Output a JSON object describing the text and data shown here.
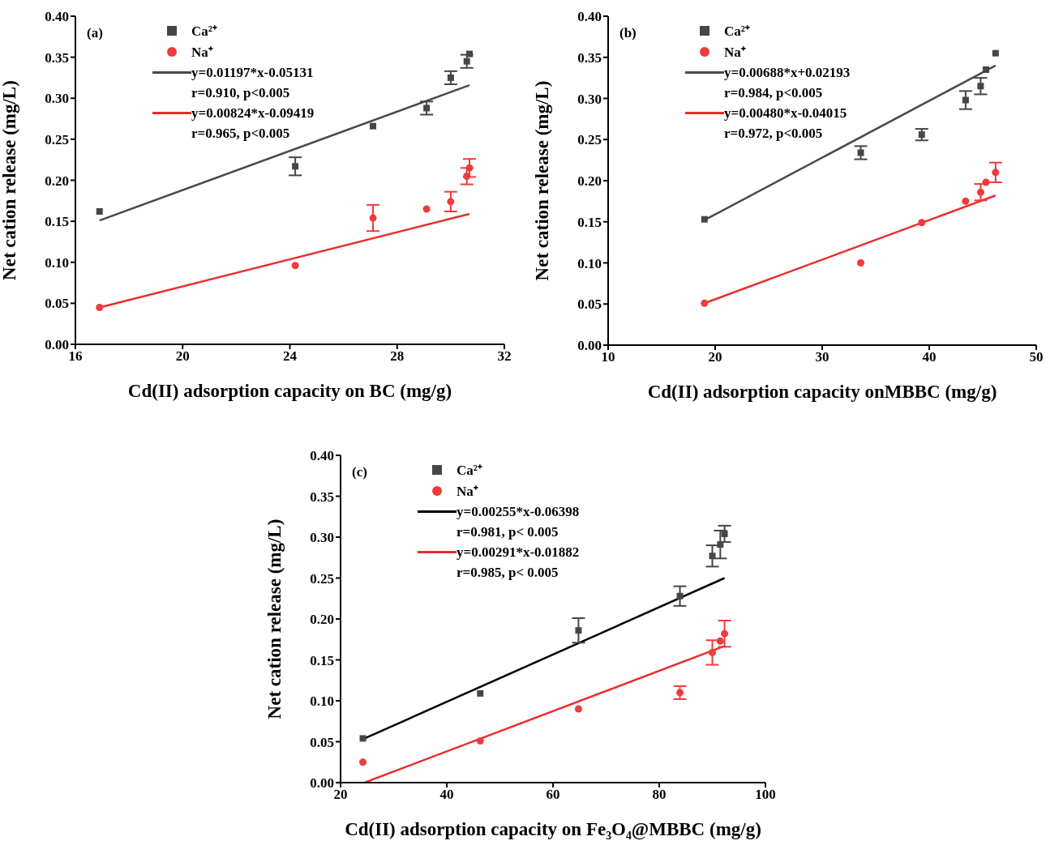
{
  "chart_data": [
    {
      "type": "scatter",
      "title": "(a)",
      "xlabel": "Cd(II) adsorption capacity on BC (mg/g)",
      "ylabel": "Net cation release (mg/L)",
      "xlim": [
        16,
        32
      ],
      "xticks": [
        16,
        20,
        24,
        28,
        32
      ],
      "ylim": [
        0,
        0.4
      ],
      "yticks": [
        {
          "value": 0,
          "label": "0.00"
        },
        {
          "value": 0.05,
          "label": "0.05"
        },
        {
          "value": 0.1,
          "label": "0.10"
        },
        {
          "value": 0.15,
          "label": "0.15"
        },
        {
          "value": 0.2,
          "label": "0.20"
        },
        {
          "value": 0.25,
          "label": "0.25"
        },
        {
          "value": 0.3,
          "label": "0.30"
        },
        {
          "value": 0.35,
          "label": "0.35"
        },
        {
          "value": 0.4,
          "label": "0.40"
        }
      ],
      "legend": "top left",
      "series": [
        {
          "name": "Ca²⁺",
          "color": "#464646",
          "marker": "square",
          "x": [
            16.9,
            24.2,
            27.1,
            29.1,
            30.0,
            30.6,
            30.7
          ],
          "values": [
            0.162,
            0.217,
            0.266,
            0.288,
            0.325,
            0.345,
            0.354
          ],
          "errors": [
            null,
            0.011,
            null,
            0.008,
            0.008,
            0.008,
            null
          ]
        },
        {
          "name": "Na⁺",
          "color": "#ee3b3b",
          "marker": "circle",
          "x": [
            16.9,
            24.2,
            27.1,
            29.1,
            30.0,
            30.6,
            30.7
          ],
          "values": [
            0.045,
            0.096,
            0.154,
            0.165,
            0.174,
            0.205,
            0.215
          ],
          "errors": [
            null,
            null,
            0.016,
            null,
            0.012,
            0.01,
            0.011
          ]
        },
        {
          "type": "line",
          "name": "y=0.01197*x-0.05131",
          "color": "#4a4a4a",
          "x": [
            16.9,
            30.7
          ],
          "values": [
            0.151,
            0.316
          ]
        },
        {
          "type": "line",
          "name": "y=0.00824*x-0.09419",
          "color": "#ee2c2c",
          "x": [
            16.9,
            30.7
          ],
          "values": [
            0.045,
            0.159
          ]
        }
      ],
      "annotations": [
        "r=0.910, p<0.005",
        "r=0.965, p<0.005"
      ]
    },
    {
      "type": "scatter",
      "title": "(b)",
      "xlabel": "Cd(II) adsorption capacity onMBBC (mg/g)",
      "ylabel": "Net cation release (mg/L)",
      "xlim": [
        10,
        50
      ],
      "xticks": [
        10,
        20,
        30,
        40,
        50
      ],
      "ylim": [
        0,
        0.4
      ],
      "yticks": [
        {
          "value": 0,
          "label": "0.00"
        },
        {
          "value": 0.05,
          "label": "0.05"
        },
        {
          "value": 0.1,
          "label": "0.10"
        },
        {
          "value": 0.15,
          "label": "0.15"
        },
        {
          "value": 0.2,
          "label": "0.20"
        },
        {
          "value": 0.25,
          "label": "0.25"
        },
        {
          "value": 0.3,
          "label": "0.30"
        },
        {
          "value": 0.35,
          "label": "0.35"
        },
        {
          "value": 0.4,
          "label": "0.40"
        }
      ],
      "legend": "top left",
      "series": [
        {
          "name": "Ca²⁺",
          "color": "#464646",
          "marker": "square",
          "x": [
            19.0,
            33.6,
            39.3,
            43.4,
            44.8,
            45.3,
            46.2
          ],
          "values": [
            0.153,
            0.234,
            0.256,
            0.298,
            0.315,
            0.335,
            0.355
          ],
          "errors": [
            null,
            0.008,
            0.007,
            0.011,
            0.01,
            null,
            null
          ]
        },
        {
          "name": "Na⁺",
          "color": "#ee3b3b",
          "marker": "circle",
          "x": [
            19.0,
            33.6,
            39.3,
            43.4,
            44.8,
            45.3,
            46.2
          ],
          "values": [
            0.051,
            0.1,
            0.149,
            0.175,
            0.186,
            0.198,
            0.21
          ],
          "errors": [
            null,
            null,
            null,
            null,
            0.01,
            null,
            0.012
          ]
        },
        {
          "type": "line",
          "name": "y=0.00688*x+0.02193",
          "color": "#4a4a4a",
          "x": [
            19.0,
            46.2
          ],
          "values": [
            0.152,
            0.34
          ]
        },
        {
          "type": "line",
          "name": "y=0.00480*x-0.04015",
          "color": "#ee2c2c",
          "x": [
            19.0,
            46.2
          ],
          "values": [
            0.051,
            0.182
          ]
        }
      ],
      "annotations": [
        "r=0.984, p<0.005",
        "r=0.972, p<0.005"
      ]
    },
    {
      "type": "scatter",
      "title": "(c)",
      "xlabel": "Cd(II) adsorption capacity on Fe₃O₄@MBBC (mg/g)",
      "ylabel": "Net cation release (mg/L)",
      "xlim": [
        20,
        100
      ],
      "xticks": [
        20,
        40,
        60,
        80,
        100
      ],
      "ylim": [
        0,
        0.4
      ],
      "yticks": [
        {
          "value": 0,
          "label": "0.00"
        },
        {
          "value": 0.05,
          "label": "0.05"
        },
        {
          "value": 0.1,
          "label": "0.10"
        },
        {
          "value": 0.15,
          "label": "0.15"
        },
        {
          "value": 0.2,
          "label": "0.20"
        },
        {
          "value": 0.25,
          "label": "0.25"
        },
        {
          "value": 0.3,
          "label": "0.30"
        },
        {
          "value": 0.35,
          "label": "0.35"
        },
        {
          "value": 0.4,
          "label": "0.40"
        }
      ],
      "legend": "top left",
      "series": [
        {
          "name": "Ca²⁺",
          "color": "#464646",
          "marker": "square",
          "x": [
            24.2,
            46.3,
            64.8,
            83.9,
            90.0,
            91.5,
            92.3
          ],
          "values": [
            0.054,
            0.109,
            0.186,
            0.228,
            0.277,
            0.291,
            0.304
          ],
          "errors": [
            null,
            null,
            0.015,
            0.012,
            0.013,
            0.017,
            0.01
          ]
        },
        {
          "name": "Na⁺",
          "color": "#ee3b3b",
          "marker": "circle",
          "x": [
            24.2,
            46.3,
            64.8,
            83.9,
            90.0,
            91.5,
            92.3
          ],
          "values": [
            0.025,
            0.051,
            0.09,
            0.11,
            0.159,
            0.173,
            0.182
          ],
          "errors": [
            null,
            null,
            null,
            0.008,
            0.015,
            null,
            0.016
          ]
        },
        {
          "type": "line",
          "name": "y=0.00255*x-0.06398",
          "color": "#000000",
          "x": [
            24.2,
            92.3
          ],
          "values": [
            0.053,
            0.25
          ]
        },
        {
          "type": "line",
          "name": "y=0.00291*x-0.01882",
          "color": "#ee2c2c",
          "x": [
            24.5,
            92.3
          ],
          "values": [
            0,
            0.167
          ]
        }
      ],
      "annotations": [
        "r=0.981, p< 0.005",
        "r=0.985, p< 0.005"
      ]
    }
  ]
}
